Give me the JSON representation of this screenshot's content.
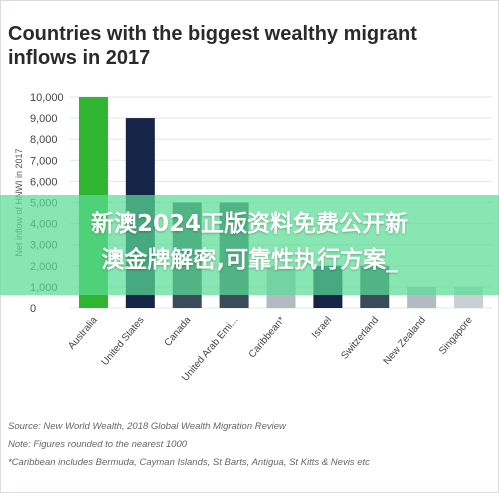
{
  "title": {
    "line1": "Countries with the biggest wealthy migrant",
    "line2": "inflows in 2017"
  },
  "chart_data": {
    "type": "bar",
    "ylabel": "Net inflow of HNWI in 2017",
    "ylim": [
      0,
      10000
    ],
    "yticks": [
      "0",
      "1,000",
      "2,000",
      "3,000",
      "4,000",
      "5,000",
      "6,000",
      "7,000",
      "8,000",
      "9,000",
      "10,000"
    ],
    "categories": [
      "Australia",
      "United States",
      "Canada",
      "United Arab Emi...",
      "Caribbean*",
      "Israel",
      "Switzerland",
      "New Zealand",
      "Singapore"
    ],
    "values": [
      10000,
      9000,
      5000,
      5000,
      2000,
      2000,
      2000,
      1000,
      1000
    ],
    "colors": [
      "#2fb52f",
      "#152447",
      "#3a4b5c",
      "#3a4b5c",
      "#b2bac2",
      "#152447",
      "#3a4b5c",
      "#b2bac2",
      "#c9cfd5"
    ],
    "grid": true,
    "legend": "none"
  },
  "overlay": {
    "line1": "新澳2024正版资料免费公开新",
    "line2": "澳金牌解密,可靠性执行方案_"
  },
  "notes": {
    "source": "Source: New World Wealth, 2018 Global Wealth Migration Review",
    "note": "Note: Figures rounded to the nearest 1000",
    "caribbean": "*Caribbean includes Bermuda, Cayman Islands, St Barts, Antigua, St Kitts & Nevis etc"
  }
}
